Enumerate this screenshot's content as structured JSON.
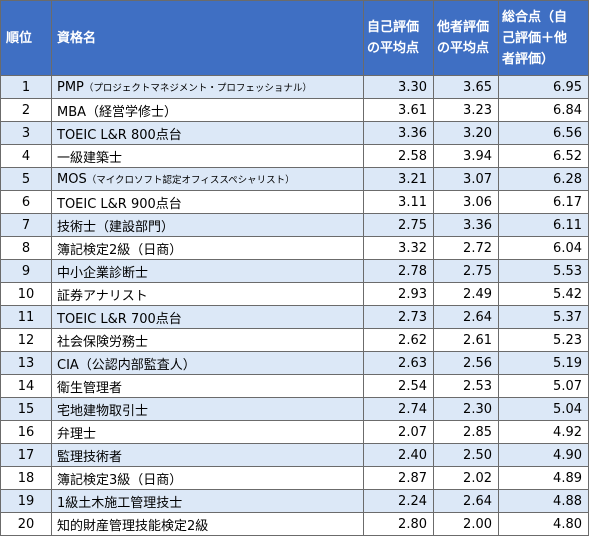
{
  "headers": {
    "rank": "順位",
    "name": "資格名",
    "self_line1": "自己評価",
    "self_line2": "の平均点",
    "other_line1": "他者評価",
    "other_line2": "の平均点",
    "total_line1": "総合点（自",
    "total_line2": "己評価＋他",
    "total_line3": "者評価）"
  },
  "rows": [
    {
      "rank": "1",
      "name": "PMP",
      "note": "（プロジェクトマネジメント・プロフェッショナル）",
      "self": "3.30",
      "other": "3.65",
      "total": "6.95"
    },
    {
      "rank": "2",
      "name": "MBA（経営学修士）",
      "note": "",
      "self": "3.61",
      "other": "3.23",
      "total": "6.84"
    },
    {
      "rank": "3",
      "name": "TOEIC L&R 800点台",
      "note": "",
      "self": "3.36",
      "other": "3.20",
      "total": "6.56"
    },
    {
      "rank": "4",
      "name": "一級建築士",
      "note": "",
      "self": "2.58",
      "other": "3.94",
      "total": "6.52"
    },
    {
      "rank": "5",
      "name": "MOS",
      "note": "（マイクロソフト認定オフィススペシャリスト）",
      "self": "3.21",
      "other": "3.07",
      "total": "6.28"
    },
    {
      "rank": "6",
      "name": "TOEIC L&R 900点台",
      "note": "",
      "self": "3.11",
      "other": "3.06",
      "total": "6.17"
    },
    {
      "rank": "7",
      "name": "技術士（建設部門）",
      "note": "",
      "self": "2.75",
      "other": "3.36",
      "total": "6.11"
    },
    {
      "rank": "8",
      "name": "簿記検定2級（日商）",
      "note": "",
      "self": "3.32",
      "other": "2.72",
      "total": "6.04"
    },
    {
      "rank": "9",
      "name": "中小企業診断士",
      "note": "",
      "self": "2.78",
      "other": "2.75",
      "total": "5.53"
    },
    {
      "rank": "10",
      "name": "証券アナリスト",
      "note": "",
      "self": "2.93",
      "other": "2.49",
      "total": "5.42"
    },
    {
      "rank": "11",
      "name": "TOEIC L&R 700点台",
      "note": "",
      "self": "2.73",
      "other": "2.64",
      "total": "5.37"
    },
    {
      "rank": "12",
      "name": "社会保険労務士",
      "note": "",
      "self": "2.62",
      "other": "2.61",
      "total": "5.23"
    },
    {
      "rank": "13",
      "name": "CIA（公認内部監査人）",
      "note": "",
      "self": "2.63",
      "other": "2.56",
      "total": "5.19"
    },
    {
      "rank": "14",
      "name": "衛生管理者",
      "note": "",
      "self": "2.54",
      "other": "2.53",
      "total": "5.07"
    },
    {
      "rank": "15",
      "name": "宅地建物取引士",
      "note": "",
      "self": "2.74",
      "other": "2.30",
      "total": "5.04"
    },
    {
      "rank": "16",
      "name": "弁理士",
      "note": "",
      "self": "2.07",
      "other": "2.85",
      "total": "4.92"
    },
    {
      "rank": "17",
      "name": "監理技術者",
      "note": "",
      "self": "2.40",
      "other": "2.50",
      "total": "4.90"
    },
    {
      "rank": "18",
      "name": "簿記検定3級（日商）",
      "note": "",
      "self": "2.87",
      "other": "2.02",
      "total": "4.89"
    },
    {
      "rank": "19",
      "name": "1級土木施工管理技士",
      "note": "",
      "self": "2.24",
      "other": "2.64",
      "total": "4.88"
    },
    {
      "rank": "20",
      "name": "知的財産管理技能検定2級",
      "note": "",
      "self": "2.80",
      "other": "2.00",
      "total": "4.80"
    }
  ]
}
